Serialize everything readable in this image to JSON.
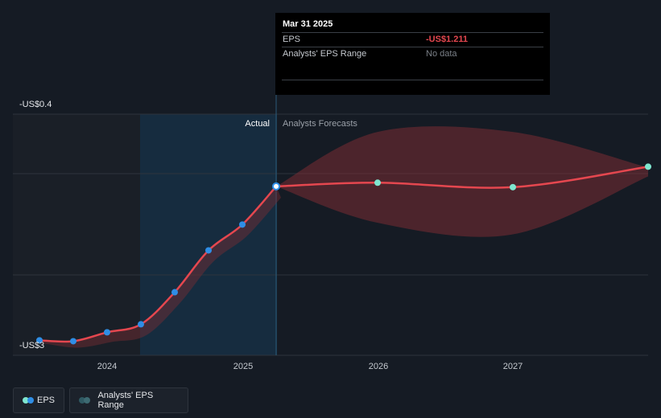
{
  "tooltip": {
    "date": "Mar 31 2025",
    "eps_label": "EPS",
    "eps_value": "-US$1.211",
    "range_label": "Analysts' EPS Range",
    "range_value": "No data"
  },
  "y_axis": {
    "top_label": "-US$0.4",
    "bottom_label": "-US$3"
  },
  "sections": {
    "actual": "Actual",
    "forecast": "Analysts Forecasts"
  },
  "legend": {
    "eps": "EPS",
    "range": "Analysts' EPS Range"
  },
  "colors": {
    "eps_line": "#e5474f",
    "actual_marker": "#2f8ee6",
    "forecast_marker": "#7fe6cf",
    "range_fill": "#7a2c33",
    "range_legend_dot": "#2f5a63"
  },
  "chart_data": {
    "type": "line",
    "x_ticks": [
      "2024",
      "2025",
      "2026",
      "2027"
    ],
    "ylim": [
      -3.0,
      -0.4
    ],
    "grid": true,
    "legend_position": "bottom-left",
    "series": [
      {
        "name": "EPS",
        "x": [
          2023.5,
          2023.75,
          2024.0,
          2024.25,
          2024.5,
          2024.75,
          2025.0,
          2025.25
        ],
        "y": [
          -2.94,
          -2.95,
          -2.85,
          -2.76,
          -2.4,
          -1.93,
          -1.64,
          -1.211
        ],
        "kind": "actual"
      },
      {
        "name": "EPS",
        "x": [
          2025.25,
          2026.0,
          2027.0,
          2028.0
        ],
        "y": [
          -1.211,
          -1.17,
          -1.22,
          -0.99
        ],
        "kind": "forecast"
      }
    ],
    "range": {
      "name": "Analysts' EPS Range",
      "x": [
        2025.25,
        2026.0,
        2027.0,
        2028.0
      ],
      "low": [
        -1.211,
        -1.62,
        -1.75,
        -1.1
      ],
      "high": [
        -1.211,
        -0.6,
        -0.6,
        -1.0
      ]
    }
  }
}
